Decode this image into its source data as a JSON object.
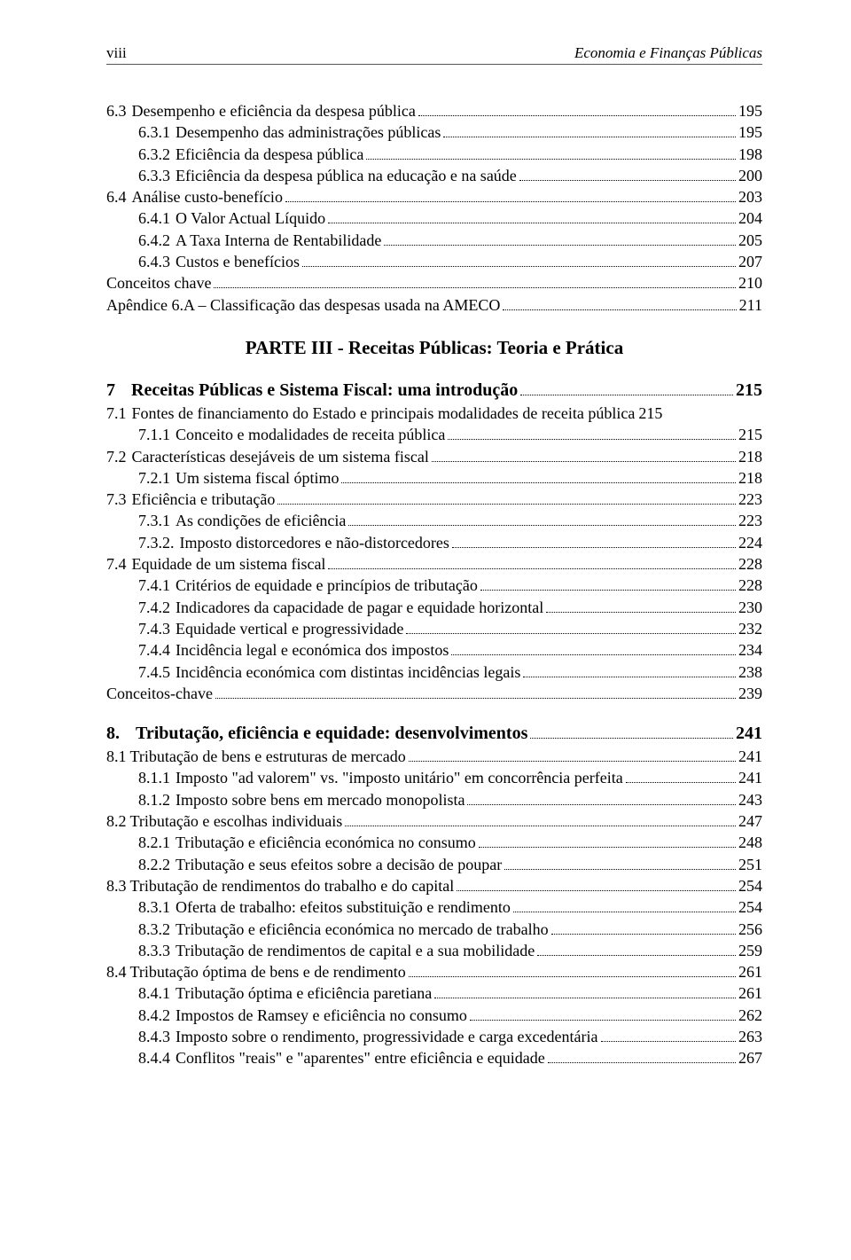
{
  "header": {
    "page_roman": "viii",
    "book_title": "Economia e Finanças Públicas"
  },
  "part_title": "PARTE III - Receitas Públicas: Teoria e Prática",
  "toc_before": [
    {
      "indent": 0,
      "num": "6.3",
      "label": "Desempenho e eficiência da despesa pública",
      "pg": "195"
    },
    {
      "indent": 1,
      "num": "6.3.1",
      "label": "Desempenho das administrações públicas",
      "pg": "195"
    },
    {
      "indent": 1,
      "num": "6.3.2",
      "label": "Eficiência da despesa pública",
      "pg": "198"
    },
    {
      "indent": 1,
      "num": "6.3.3",
      "label": "Eficiência da despesa pública na educação e na saúde",
      "pg": "200"
    },
    {
      "indent": 0,
      "num": "6.4",
      "label": "Análise custo-benefício",
      "pg": "203"
    },
    {
      "indent": 1,
      "num": "6.4.1",
      "label": "O Valor Actual Líquido",
      "pg": "204"
    },
    {
      "indent": 1,
      "num": "6.4.2",
      "label": "A Taxa Interna de Rentabilidade",
      "pg": "205"
    },
    {
      "indent": 1,
      "num": "6.4.3",
      "label": "Custos e benefícios",
      "pg": "207"
    },
    {
      "indent": 0,
      "num": "",
      "label": "Conceitos chave",
      "pg": "210",
      "nolabelpad": true
    },
    {
      "indent": 0,
      "num": "",
      "label": "Apêndice 6.A – Classificação das despesas usada na AMECO",
      "pg": "211",
      "nolabelpad": true
    }
  ],
  "chapter7": {
    "num": "7",
    "label": "Receitas Públicas e Sistema Fiscal: uma introdução",
    "pg": "215"
  },
  "toc_ch7": [
    {
      "indent": 0,
      "num": "7.1",
      "label": "Fontes de financiamento do Estado e principais modalidades de receita pública",
      "pg": "215",
      "nodots": true
    },
    {
      "indent": 1,
      "num": "7.1.1",
      "label": "Conceito e modalidades de receita pública",
      "pg": "215"
    },
    {
      "indent": 0,
      "num": "7.2",
      "label": "Características desejáveis de um sistema fiscal",
      "pg": "218"
    },
    {
      "indent": 1,
      "num": "7.2.1",
      "label": "Um sistema fiscal óptimo",
      "pg": "218"
    },
    {
      "indent": 0,
      "num": "7.3",
      "label": "Eficiência e tributação",
      "pg": "223"
    },
    {
      "indent": 1,
      "num": "7.3.1",
      "label": "As condições de eficiência",
      "pg": "223"
    },
    {
      "indent": 1,
      "num": "7.3.2.",
      "label": "Imposto distorcedores e não-distorcedores",
      "pg": "224"
    },
    {
      "indent": 0,
      "num": "7.4",
      "label": "Equidade de um sistema fiscal",
      "pg": "228"
    },
    {
      "indent": 1,
      "num": "7.4.1",
      "label": "Critérios de equidade e princípios de tributação",
      "pg": "228"
    },
    {
      "indent": 1,
      "num": "7.4.2",
      "label": "Indicadores da capacidade de pagar e equidade horizontal",
      "pg": "230"
    },
    {
      "indent": 1,
      "num": "7.4.3",
      "label": "Equidade vertical e progressividade",
      "pg": "232"
    },
    {
      "indent": 1,
      "num": "7.4.4",
      "label": "Incidência legal e económica dos impostos",
      "pg": "234"
    },
    {
      "indent": 1,
      "num": "7.4.5",
      "label": "Incidência económica com distintas incidências legais",
      "pg": "238"
    },
    {
      "indent": 0,
      "num": "",
      "label": "Conceitos-chave",
      "pg": "239",
      "nolabelpad": true
    }
  ],
  "chapter8": {
    "num": "8.",
    "label": "Tributação, eficiência e equidade: desenvolvimentos",
    "pg": "241"
  },
  "toc_ch8": [
    {
      "indent": 0,
      "num": "8.1",
      "label": "Tributação de bens e estruturas de mercado",
      "pg": "241",
      "tight": true
    },
    {
      "indent": 1,
      "num": "8.1.1",
      "label": "Imposto \"ad valorem\" vs. \"imposto unitário\" em concorrência perfeita",
      "pg": "241"
    },
    {
      "indent": 1,
      "num": "8.1.2",
      "label": "Imposto sobre bens em mercado monopolista",
      "pg": "243"
    },
    {
      "indent": 0,
      "num": "8.2",
      "label": "Tributação e escolhas individuais",
      "pg": "247",
      "tight": true
    },
    {
      "indent": 1,
      "num": "8.2.1",
      "label": "Tributação e eficiência económica no consumo",
      "pg": "248"
    },
    {
      "indent": 1,
      "num": "8.2.2",
      "label": "Tributação e seus efeitos sobre a decisão de poupar",
      "pg": "251"
    },
    {
      "indent": 0,
      "num": "8.3",
      "label": "Tributação de rendimentos do trabalho e do capital",
      "pg": "254",
      "tight": true
    },
    {
      "indent": 1,
      "num": "8.3.1",
      "label": "Oferta de trabalho: efeitos substituição e rendimento",
      "pg": "254"
    },
    {
      "indent": 1,
      "num": "8.3.2",
      "label": "Tributação e eficiência económica no mercado de trabalho",
      "pg": "256"
    },
    {
      "indent": 1,
      "num": "8.3.3",
      "label": "Tributação de rendimentos de capital e a sua mobilidade",
      "pg": "259"
    },
    {
      "indent": 0,
      "num": "8.4",
      "label": "Tributação óptima de bens e de rendimento",
      "pg": "261",
      "tight": true
    },
    {
      "indent": 1,
      "num": "8.4.1",
      "label": "Tributação óptima e eficiência paretiana",
      "pg": "261"
    },
    {
      "indent": 1,
      "num": "8.4.2",
      "label": "Impostos de Ramsey e eficiência no consumo",
      "pg": "262"
    },
    {
      "indent": 1,
      "num": "8.4.3",
      "label": "Imposto sobre o rendimento, progressividade e carga excedentária",
      "pg": "263"
    },
    {
      "indent": 1,
      "num": "8.4.4",
      "label": "Conflitos \"reais\" e \"aparentes\" entre eficiência e equidade",
      "pg": "267"
    }
  ]
}
